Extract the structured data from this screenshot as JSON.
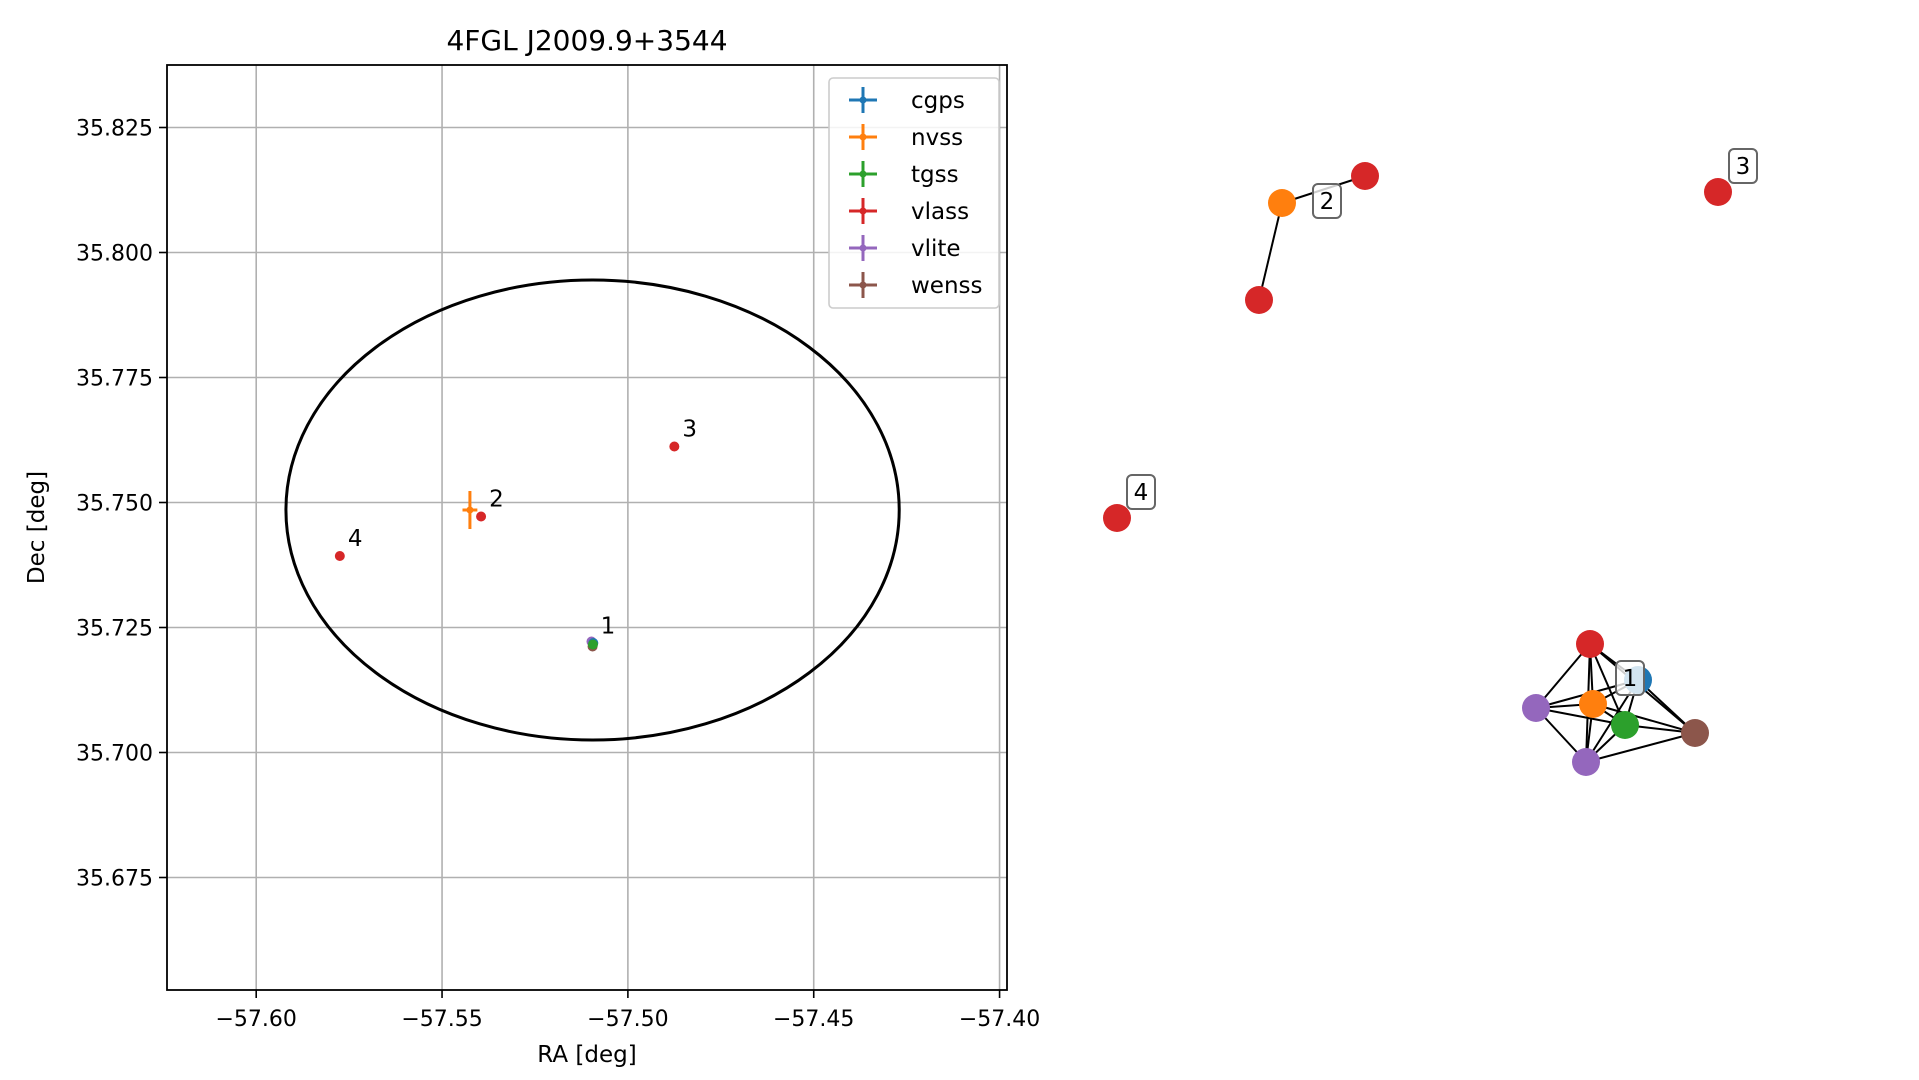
{
  "colors": {
    "cgps": "#1f77b4",
    "nvss": "#ff7f0e",
    "tgss": "#2ca02c",
    "vlass": "#d62728",
    "vlite": "#9467bd",
    "wenss": "#8c564b"
  },
  "chart_data": [
    {
      "type": "scatter",
      "title": "4FGL J2009.9+3544",
      "xlabel": "RA [deg]",
      "ylabel": "Dec [deg]",
      "xlim": [
        -57.624,
        -57.398
      ],
      "ylim": [
        35.6525,
        35.8375
      ],
      "xticks": [
        -57.6,
        -57.55,
        -57.5,
        -57.45,
        -57.4
      ],
      "xtick_labels": [
        "−57.60",
        "−57.55",
        "−57.50",
        "−57.45",
        "−57.40"
      ],
      "yticks": [
        35.675,
        35.7,
        35.725,
        35.75,
        35.775,
        35.8,
        35.825
      ],
      "ytick_labels": [
        "35.675",
        "35.700",
        "35.725",
        "35.750",
        "35.775",
        "35.800",
        "35.825"
      ],
      "grid": true,
      "legend_position": "top-right",
      "legend": [
        "cgps",
        "nvss",
        "tgss",
        "vlass",
        "vlite",
        "wenss"
      ],
      "ellipse": {
        "center_ra": -57.5095,
        "center_dec": 35.7485,
        "semi_ra": 0.0825,
        "semi_dec": 0.046
      },
      "points": [
        {
          "survey": "vlass",
          "ra": -57.5095,
          "dec": 35.7218
        },
        {
          "survey": "vlite",
          "ra": -57.5098,
          "dec": 35.7222
        },
        {
          "survey": "wenss",
          "ra": -57.5095,
          "dec": 35.7212
        },
        {
          "survey": "cgps",
          "ra": -57.5093,
          "dec": 35.7219
        },
        {
          "survey": "tgss",
          "ra": -57.5094,
          "dec": 35.7216
        },
        {
          "survey": "vlass",
          "ra": -57.5395,
          "dec": 35.7472
        },
        {
          "survey": "vlass",
          "ra": -57.4875,
          "dec": 35.7612
        },
        {
          "survey": "vlass",
          "ra": -57.5775,
          "dec": 35.7393
        }
      ],
      "errorbars": [
        {
          "survey": "nvss",
          "ra": -57.5425,
          "dec": 35.7485,
          "ra_err": 0.002,
          "dec_err": 0.0038
        }
      ],
      "labels": [
        {
          "text": "1",
          "ra": -57.5095,
          "dec": 35.7218
        },
        {
          "text": "2",
          "ra": -57.5395,
          "dec": 35.7472
        },
        {
          "text": "3",
          "ra": -57.4875,
          "dec": 35.7612
        },
        {
          "text": "4",
          "ra": -57.5775,
          "dec": 35.7393
        }
      ]
    },
    {
      "type": "network",
      "nodes": [
        {
          "id": "a1",
          "survey": "vlass"
        },
        {
          "id": "a2",
          "survey": "cgps"
        },
        {
          "id": "a3",
          "survey": "nvss"
        },
        {
          "id": "a4",
          "survey": "tgss"
        },
        {
          "id": "a5",
          "survey": "vlite"
        },
        {
          "id": "a6",
          "survey": "vlite"
        },
        {
          "id": "a7",
          "survey": "wenss"
        },
        {
          "id": "b1",
          "survey": "nvss"
        },
        {
          "id": "b2",
          "survey": "vlass"
        },
        {
          "id": "b3",
          "survey": "vlass"
        },
        {
          "id": "c1",
          "survey": "vlass"
        },
        {
          "id": "d1",
          "survey": "vlass"
        }
      ],
      "edges": [
        [
          "a1",
          "a2"
        ],
        [
          "a1",
          "a3"
        ],
        [
          "a1",
          "a4"
        ],
        [
          "a1",
          "a5"
        ],
        [
          "a1",
          "a6"
        ],
        [
          "a1",
          "a7"
        ],
        [
          "a2",
          "a3"
        ],
        [
          "a2",
          "a4"
        ],
        [
          "a2",
          "a5"
        ],
        [
          "a2",
          "a6"
        ],
        [
          "a2",
          "a7"
        ],
        [
          "a3",
          "a4"
        ],
        [
          "a3",
          "a5"
        ],
        [
          "a3",
          "a6"
        ],
        [
          "a3",
          "a7"
        ],
        [
          "a4",
          "a5"
        ],
        [
          "a4",
          "a6"
        ],
        [
          "a4",
          "a7"
        ],
        [
          "a5",
          "a6"
        ],
        [
          "a6",
          "a7"
        ],
        [
          "b1",
          "b2"
        ],
        [
          "b1",
          "b3"
        ]
      ],
      "labels": [
        {
          "text": "1",
          "node": "a2"
        },
        {
          "text": "2",
          "node": "b1"
        },
        {
          "text": "3",
          "node": "c1"
        },
        {
          "text": "4",
          "node": "d1"
        }
      ]
    }
  ]
}
